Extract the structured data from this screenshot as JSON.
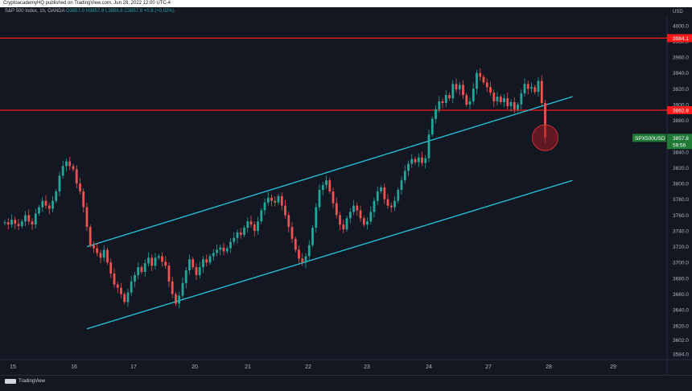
{
  "header": {
    "publisher": "CryptoacademyHQ published on TradingView.com, Jun 28, 2022 12:00 UTC-4"
  },
  "symbol": {
    "name": "S&P 500 Index, 1h, OANDA",
    "ohlc": "O3857.0  H3857.8  L3856.8  C3857.8  +0.8 (+0.02%)"
  },
  "price_axis": {
    "currency": "USD"
  },
  "brand": {
    "name": "TradingView"
  },
  "colors": {
    "background": "#131722",
    "up": "#26a69a",
    "down": "#ef5350",
    "level": "#ff1a1a",
    "channel": "#26c6da",
    "highlight": "#a11a22",
    "symbol_tag": "#1f7a36"
  },
  "chart_data": {
    "type": "candlestick",
    "ylim": [
      3578,
      4012
    ],
    "y_ticks": [
      3584.0,
      3602.0,
      3620.0,
      3640.0,
      3660.0,
      3680.0,
      3700.0,
      3720.0,
      3740.0,
      3760.0,
      3780.0,
      3800.0,
      3820.0,
      3840.0,
      3860.0,
      3880.0,
      3900.0,
      3920.0,
      3940.0,
      3960.0,
      3980.0,
      4000.0
    ],
    "x_ticks": [
      "15",
      "16",
      "17",
      "20",
      "21",
      "22",
      "23",
      "24",
      "27",
      "28",
      "29"
    ],
    "candle_closes": [
      3751,
      3748,
      3754,
      3749,
      3746,
      3752,
      3760,
      3752,
      3748,
      3762,
      3770,
      3778,
      3772,
      3768,
      3778,
      3790,
      3810,
      3822,
      3828,
      3822,
      3818,
      3800,
      3790,
      3770,
      3745,
      3722,
      3718,
      3712,
      3706,
      3716,
      3700,
      3686,
      3672,
      3668,
      3660,
      3650,
      3662,
      3676,
      3684,
      3694,
      3688,
      3699,
      3706,
      3696,
      3706,
      3708,
      3701,
      3696,
      3676,
      3660,
      3648,
      3658,
      3674,
      3690,
      3704,
      3694,
      3684,
      3694,
      3704,
      3700,
      3708,
      3712,
      3716,
      3719,
      3714,
      3718,
      3726,
      3731,
      3738,
      3735,
      3744,
      3752,
      3748,
      3740,
      3752,
      3766,
      3776,
      3782,
      3778,
      3776,
      3784,
      3772,
      3760,
      3745,
      3730,
      3716,
      3705,
      3700,
      3708,
      3722,
      3744,
      3770,
      3792,
      3798,
      3804,
      3790,
      3775,
      3760,
      3748,
      3742,
      3756,
      3764,
      3772,
      3766,
      3756,
      3748,
      3752,
      3764,
      3778,
      3790,
      3795,
      3780,
      3772,
      3770,
      3778,
      3792,
      3804,
      3816,
      3825,
      3831,
      3827,
      3833,
      3826,
      3832,
      3862,
      3882,
      3894,
      3904,
      3902,
      3912,
      3908,
      3926,
      3919,
      3925,
      3912,
      3900,
      3904,
      3920,
      3940,
      3935,
      3928,
      3922,
      3915,
      3904,
      3910,
      3903,
      3908,
      3898,
      3903,
      3894,
      3900,
      3914,
      3926,
      3920,
      3922,
      3916,
      3930,
      3902,
      3858
    ],
    "horizontal_levels": [
      {
        "value": 3984.1,
        "label": "3984.1"
      },
      {
        "value": 3892.8,
        "label": "3892.8"
      }
    ],
    "trendlines": [
      {
        "name": "channel-top",
        "from": {
          "index": 24,
          "value": 3720
        },
        "to": {
          "index": 166,
          "value": 3910
        }
      },
      {
        "name": "channel-bottom",
        "from": {
          "index": 24,
          "value": 3616
        },
        "to": {
          "index": 166,
          "value": 3804
        }
      }
    ],
    "last_price": {
      "symbol": "SPX500USD",
      "value": "3857.8",
      "countdown": "59:56"
    }
  }
}
